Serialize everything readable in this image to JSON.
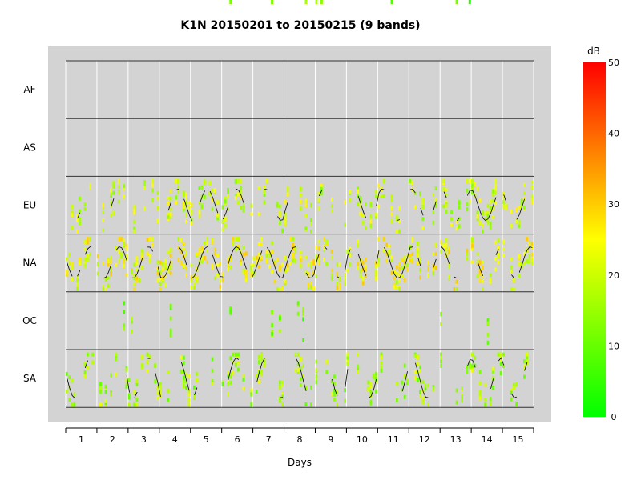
{
  "chart_data": {
    "type": "heatmap",
    "title": "K1N 20150201 to 20150215 (9 bands)",
    "xlabel": "Days",
    "ylabel": "",
    "continents": [
      "AF",
      "AS",
      "EU",
      "NA",
      "OC",
      "SA"
    ],
    "day_ticks": [
      "1",
      "2",
      "3",
      "4",
      "5",
      "6",
      "7",
      "8",
      "9",
      "10",
      "11",
      "12",
      "13",
      "14",
      "15"
    ],
    "xlim": [
      0,
      15
    ],
    "colorbar": {
      "label": "dB",
      "ticks": [
        "0",
        "10",
        "20",
        "30",
        "40",
        "50"
      ],
      "range": [
        0,
        50
      ],
      "colors": [
        "#00ff00",
        "#ffff00",
        "#ff0000"
      ]
    },
    "background": "#d3d3d3",
    "series_profiles": {
      "AF": {
        "density": 0.02,
        "level": 10,
        "line": false
      },
      "AS": {
        "density": 0.02,
        "level": 8,
        "line": false
      },
      "EU": {
        "density": 0.55,
        "level": 18,
        "line": true,
        "amplitude": 0.55,
        "center": 0.45
      },
      "NA": {
        "density": 0.75,
        "level": 22,
        "line": true,
        "amplitude": 0.55,
        "center": 0.45
      },
      "OC": {
        "density": 0.08,
        "level": 10,
        "line": true,
        "amplitude": 0.35,
        "center": 0.5
      },
      "SA": {
        "density": 0.5,
        "level": 15,
        "line": true,
        "amplitude": 0.7,
        "center": 0.45
      }
    }
  }
}
